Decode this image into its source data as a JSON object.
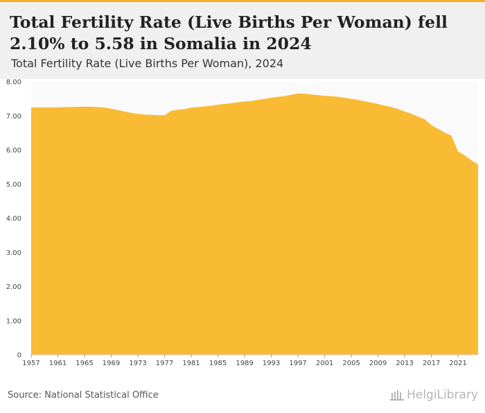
{
  "header": {
    "title": "Total Fertility Rate (Live Births Per Woman) fell 2.10% to 5.58 in Somalia in 2024",
    "subtitle": "Total Fertility Rate (Live Births Per Woman), 2024"
  },
  "footer": {
    "source": "Source: National Statistical Office",
    "logo_text": "HelgiLibrary"
  },
  "colors": {
    "area": "#f9bb33",
    "accent": "#f5b026",
    "header_bg": "#f0f0f0"
  },
  "chart_data": {
    "type": "area",
    "x": [
      1957,
      1958,
      1959,
      1960,
      1961,
      1962,
      1963,
      1964,
      1965,
      1966,
      1967,
      1968,
      1969,
      1970,
      1971,
      1972,
      1973,
      1974,
      1975,
      1976,
      1977,
      1978,
      1979,
      1980,
      1981,
      1982,
      1983,
      1984,
      1985,
      1986,
      1987,
      1988,
      1989,
      1990,
      1991,
      1992,
      1993,
      1994,
      1995,
      1996,
      1997,
      1998,
      1999,
      2000,
      2001,
      2002,
      2003,
      2004,
      2005,
      2006,
      2007,
      2008,
      2009,
      2010,
      2011,
      2012,
      2013,
      2014,
      2015,
      2016,
      2017,
      2018,
      2019,
      2020,
      2021,
      2022,
      2023,
      2024
    ],
    "values": [
      7.25,
      7.25,
      7.25,
      7.25,
      7.25,
      7.26,
      7.26,
      7.27,
      7.27,
      7.27,
      7.26,
      7.24,
      7.21,
      7.17,
      7.13,
      7.09,
      7.06,
      7.04,
      7.03,
      7.02,
      7.02,
      7.15,
      7.18,
      7.2,
      7.24,
      7.26,
      7.28,
      7.3,
      7.33,
      7.35,
      7.37,
      7.4,
      7.42,
      7.44,
      7.47,
      7.5,
      7.53,
      7.56,
      7.58,
      7.62,
      7.66,
      7.65,
      7.63,
      7.61,
      7.59,
      7.58,
      7.56,
      7.53,
      7.5,
      7.47,
      7.43,
      7.39,
      7.35,
      7.3,
      7.26,
      7.2,
      7.13,
      7.06,
      6.98,
      6.9,
      6.73,
      6.62,
      6.51,
      6.42,
      5.96,
      5.84,
      5.7,
      5.58
    ],
    "x_ticks": [
      1957,
      1961,
      1965,
      1969,
      1973,
      1977,
      1981,
      1985,
      1989,
      1993,
      1997,
      2001,
      2005,
      2009,
      2013,
      2017,
      2021
    ],
    "y_ticks": [
      0,
      1,
      2,
      3,
      4,
      5,
      6,
      7,
      8
    ],
    "y_tick_labels": [
      "0",
      "1.00",
      "2.00",
      "3.00",
      "4.00",
      "5.00",
      "6.00",
      "7.00",
      "8.00"
    ],
    "ylim": [
      0,
      8
    ],
    "xlim": [
      1957,
      2024
    ],
    "grid": false,
    "legend": "none"
  }
}
